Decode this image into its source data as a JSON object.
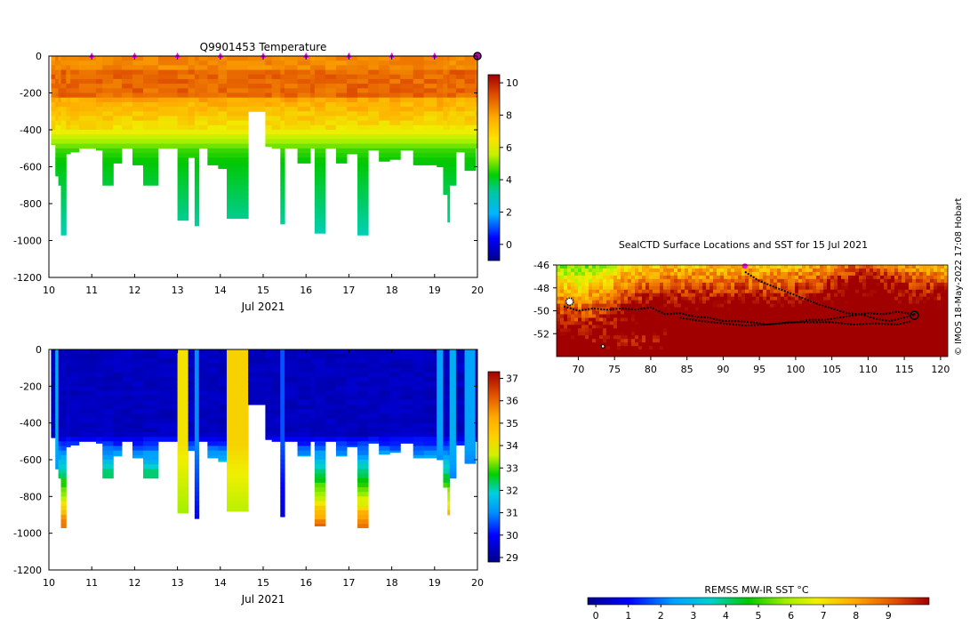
{
  "credit": "© IMOS 18-May-2022 17:08 Hobart",
  "chart_data": [
    {
      "id": "temperature-section",
      "type": "heatmap",
      "title": "Q9901453  Temperature",
      "xlabel": "Jul 2021",
      "ylabel": "",
      "xlim": [
        10,
        20
      ],
      "ylim": [
        -1200,
        0
      ],
      "x_ticks": [
        "10",
        "11",
        "12",
        "13",
        "14",
        "15",
        "16",
        "17",
        "18",
        "19",
        "20"
      ],
      "y_ticks": [
        "0",
        "-200",
        "-400",
        "-600",
        "-800",
        "-1000",
        "-1200"
      ],
      "surface_markers_x": [
        11,
        12,
        13,
        14,
        15,
        16,
        17,
        18,
        19
      ],
      "colorbar": {
        "min": -1,
        "max": 10.5,
        "ticks": [
          "0",
          "2",
          "4",
          "6",
          "8",
          "10"
        ]
      },
      "profiles": [
        {
          "x0": 10.05,
          "x1": 10.15,
          "depth": 480
        },
        {
          "x0": 10.15,
          "x1": 10.22,
          "depth": 650
        },
        {
          "x0": 10.22,
          "x1": 10.28,
          "depth": 700
        },
        {
          "x0": 10.28,
          "x1": 10.4,
          "depth": 970
        },
        {
          "x0": 10.4,
          "x1": 10.5,
          "depth": 530
        },
        {
          "x0": 10.5,
          "x1": 10.7,
          "depth": 520
        },
        {
          "x0": 10.7,
          "x1": 11.1,
          "depth": 500
        },
        {
          "x0": 11.1,
          "x1": 11.25,
          "depth": 510
        },
        {
          "x0": 11.25,
          "x1": 11.5,
          "depth": 700
        },
        {
          "x0": 11.5,
          "x1": 11.7,
          "depth": 580
        },
        {
          "x0": 11.7,
          "x1": 11.95,
          "depth": 500
        },
        {
          "x0": 11.95,
          "x1": 12.2,
          "depth": 590
        },
        {
          "x0": 12.2,
          "x1": 12.55,
          "depth": 700
        },
        {
          "x0": 12.55,
          "x1": 13.0,
          "depth": 500
        },
        {
          "x0": 13.0,
          "x1": 13.25,
          "depth": 890
        },
        {
          "x0": 13.25,
          "x1": 13.4,
          "depth": 550
        },
        {
          "x0": 13.4,
          "x1": 13.5,
          "depth": 920
        },
        {
          "x0": 13.5,
          "x1": 13.7,
          "depth": 500
        },
        {
          "x0": 13.7,
          "x1": 13.95,
          "depth": 590
        },
        {
          "x0": 13.95,
          "x1": 14.15,
          "depth": 610
        },
        {
          "x0": 14.15,
          "x1": 14.65,
          "depth": 880
        },
        {
          "x0": 14.65,
          "x1": 15.05,
          "depth": 300
        },
        {
          "x0": 15.05,
          "x1": 15.2,
          "depth": 490
        },
        {
          "x0": 15.2,
          "x1": 15.4,
          "depth": 500
        },
        {
          "x0": 15.4,
          "x1": 15.5,
          "depth": 910
        },
        {
          "x0": 15.5,
          "x1": 15.8,
          "depth": 500
        },
        {
          "x0": 15.8,
          "x1": 16.1,
          "depth": 580
        },
        {
          "x0": 16.1,
          "x1": 16.2,
          "depth": 500
        },
        {
          "x0": 16.2,
          "x1": 16.45,
          "depth": 960
        },
        {
          "x0": 16.45,
          "x1": 16.7,
          "depth": 500
        },
        {
          "x0": 16.7,
          "x1": 16.95,
          "depth": 580
        },
        {
          "x0": 16.95,
          "x1": 17.2,
          "depth": 530
        },
        {
          "x0": 17.2,
          "x1": 17.45,
          "depth": 970
        },
        {
          "x0": 17.45,
          "x1": 17.7,
          "depth": 510
        },
        {
          "x0": 17.7,
          "x1": 17.95,
          "depth": 570
        },
        {
          "x0": 17.95,
          "x1": 18.2,
          "depth": 560
        },
        {
          "x0": 18.2,
          "x1": 18.5,
          "depth": 510
        },
        {
          "x0": 18.5,
          "x1": 18.75,
          "depth": 590
        },
        {
          "x0": 18.75,
          "x1": 19.05,
          "depth": 590
        },
        {
          "x0": 19.05,
          "x1": 19.2,
          "depth": 600
        },
        {
          "x0": 19.2,
          "x1": 19.3,
          "depth": 750
        },
        {
          "x0": 19.3,
          "x1": 19.35,
          "depth": 900
        },
        {
          "x0": 19.35,
          "x1": 19.5,
          "depth": 700
        },
        {
          "x0": 19.5,
          "x1": 19.7,
          "depth": 520
        },
        {
          "x0": 19.7,
          "x1": 19.95,
          "depth": 620
        },
        {
          "x0": 19.95,
          "x1": 20.0,
          "depth": 500
        }
      ]
    },
    {
      "id": "salinity-section",
      "type": "heatmap",
      "title": "",
      "xlabel": "Jul 2021",
      "ylabel": "",
      "xlim": [
        10,
        20
      ],
      "ylim": [
        -1200,
        0
      ],
      "x_ticks": [
        "10",
        "11",
        "12",
        "13",
        "14",
        "15",
        "16",
        "17",
        "18",
        "19",
        "20"
      ],
      "y_ticks": [
        "0",
        "-200",
        "-400",
        "-600",
        "-800",
        "-1000",
        "-1200"
      ],
      "colorbar": {
        "min": 28.8,
        "max": 37.3,
        "ticks": [
          "29",
          "30",
          "31",
          "32",
          "33",
          "34",
          "35",
          "36",
          "37"
        ]
      },
      "bright_profiles": [
        {
          "x0": 10.15,
          "x1": 10.22,
          "value": 31.2
        },
        {
          "x0": 11.15,
          "x1": 11.45,
          "value": 31.0
        },
        {
          "x0": 13.0,
          "x1": 13.25,
          "value": 34.7
        },
        {
          "x0": 13.4,
          "x1": 13.5,
          "value": 30.8
        },
        {
          "x0": 14.15,
          "x1": 14.65,
          "value": 34.9
        },
        {
          "x0": 15.4,
          "x1": 15.5,
          "value": 30.4
        },
        {
          "x0": 19.05,
          "x1": 19.2,
          "value": 31.0
        },
        {
          "x0": 19.35,
          "x1": 19.5,
          "value": 31.2
        },
        {
          "x0": 19.7,
          "x1": 19.95,
          "value": 31.0
        }
      ]
    },
    {
      "id": "sst-map",
      "type": "heatmap",
      "title": "SealCTD Surface Locations and SST for 15 Jul 2021",
      "xlabel": "",
      "ylabel": "",
      "xlim": [
        67,
        121
      ],
      "ylim": [
        -54,
        -46
      ],
      "x_ticks": [
        "70",
        "75",
        "80",
        "85",
        "90",
        "95",
        "100",
        "105",
        "110",
        "115",
        "120"
      ],
      "y_ticks": [
        "-46",
        "-48",
        "-50",
        "-52"
      ],
      "colorbar": {
        "label": "REMSS MW-IR SST °C",
        "min": -0.25,
        "max": 10.25,
        "ticks": [
          "0",
          "1",
          "2",
          "3",
          "4",
          "5",
          "6",
          "7",
          "8",
          "9"
        ]
      },
      "tracks": [
        {
          "name": "track-1",
          "lon": [
            68,
            70,
            72,
            74,
            76,
            78,
            80,
            82,
            84,
            86,
            88,
            90,
            92,
            94,
            96,
            98,
            100,
            102,
            104,
            106,
            108,
            110,
            112,
            114,
            115.5,
            116.5
          ],
          "lat": [
            -49.6,
            -50.0,
            -49.8,
            -49.9,
            -49.8,
            -49.9,
            -49.7,
            -50.3,
            -50.2,
            -50.5,
            -50.6,
            -50.9,
            -50.9,
            -51.0,
            -51.2,
            -51.1,
            -51.0,
            -50.8,
            -50.8,
            -50.6,
            -50.4,
            -50.2,
            -50.3,
            -50.1,
            -50.2,
            -50.3
          ]
        },
        {
          "name": "track-2",
          "lon": [
            93,
            95,
            97,
            99,
            101,
            103,
            105,
            107,
            109,
            111,
            113,
            115,
            116.5
          ],
          "lat": [
            -46.6,
            -47.4,
            -47.9,
            -48.4,
            -48.9,
            -49.4,
            -49.8,
            -50.2,
            -50.3,
            -50.7,
            -50.9,
            -50.6,
            -50.3
          ]
        },
        {
          "name": "track-3",
          "lon": [
            84,
            87,
            90,
            93,
            96,
            99,
            102,
            105,
            108,
            111,
            114,
            116
          ],
          "lat": [
            -50.6,
            -50.9,
            -51.1,
            -51.3,
            -51.2,
            -51.0,
            -51.0,
            -51.0,
            -51.2,
            -51.1,
            -51.2,
            -50.9
          ]
        }
      ],
      "start_marker": {
        "lon": 93,
        "lat": -46.1
      }
    }
  ]
}
